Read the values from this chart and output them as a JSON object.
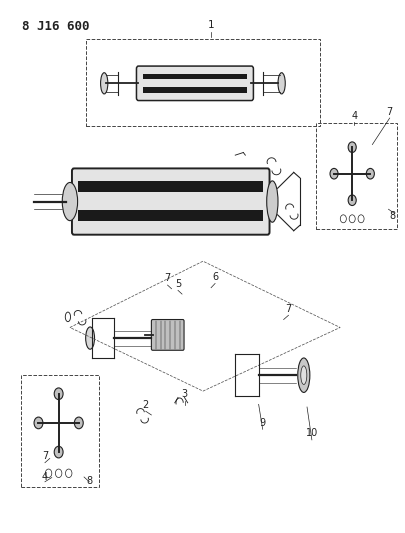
{
  "title": "8 J16 600",
  "bg_color": "#ffffff",
  "line_color": "#222222",
  "figsize": [
    4.06,
    5.33
  ],
  "dpi": 100
}
